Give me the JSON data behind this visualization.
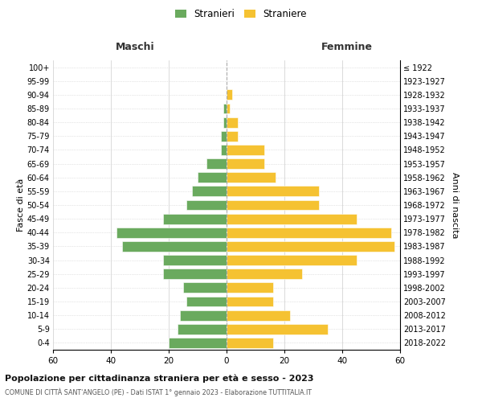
{
  "age_groups": [
    "0-4",
    "5-9",
    "10-14",
    "15-19",
    "20-24",
    "25-29",
    "30-34",
    "35-39",
    "40-44",
    "45-49",
    "50-54",
    "55-59",
    "60-64",
    "65-69",
    "70-74",
    "75-79",
    "80-84",
    "85-89",
    "90-94",
    "95-99",
    "100+"
  ],
  "birth_years": [
    "2018-2022",
    "2013-2017",
    "2008-2012",
    "2003-2007",
    "1998-2002",
    "1993-1997",
    "1988-1992",
    "1983-1987",
    "1978-1982",
    "1973-1977",
    "1968-1972",
    "1963-1967",
    "1958-1962",
    "1953-1957",
    "1948-1952",
    "1943-1947",
    "1938-1942",
    "1933-1937",
    "1928-1932",
    "1923-1927",
    "≤ 1922"
  ],
  "maschi": [
    20,
    17,
    16,
    14,
    15,
    22,
    22,
    36,
    38,
    22,
    14,
    12,
    10,
    7,
    2,
    2,
    1,
    1,
    0,
    0,
    0
  ],
  "femmine": [
    16,
    35,
    22,
    16,
    16,
    26,
    45,
    58,
    57,
    45,
    32,
    32,
    17,
    13,
    13,
    4,
    4,
    1,
    2,
    0,
    0
  ],
  "color_maschi": "#6aaa5e",
  "color_femmine": "#f5c232",
  "title_main": "Popolazione per cittadinanza straniera per età e sesso - 2023",
  "title_sub": "COMUNE DI CITTÀ SANT'ANGELO (PE) - Dati ISTAT 1° gennaio 2023 - Elaborazione TUTTITALIA.IT",
  "label_maschi": "Maschi",
  "label_femmine": "Femmine",
  "legend_stranieri": "Stranieri",
  "legend_straniere": "Straniere",
  "ylabel_left": "Fasce di età",
  "ylabel_right": "Anni di nascita",
  "xlim": 60,
  "background_color": "#ffffff",
  "grid_color": "#cccccc"
}
